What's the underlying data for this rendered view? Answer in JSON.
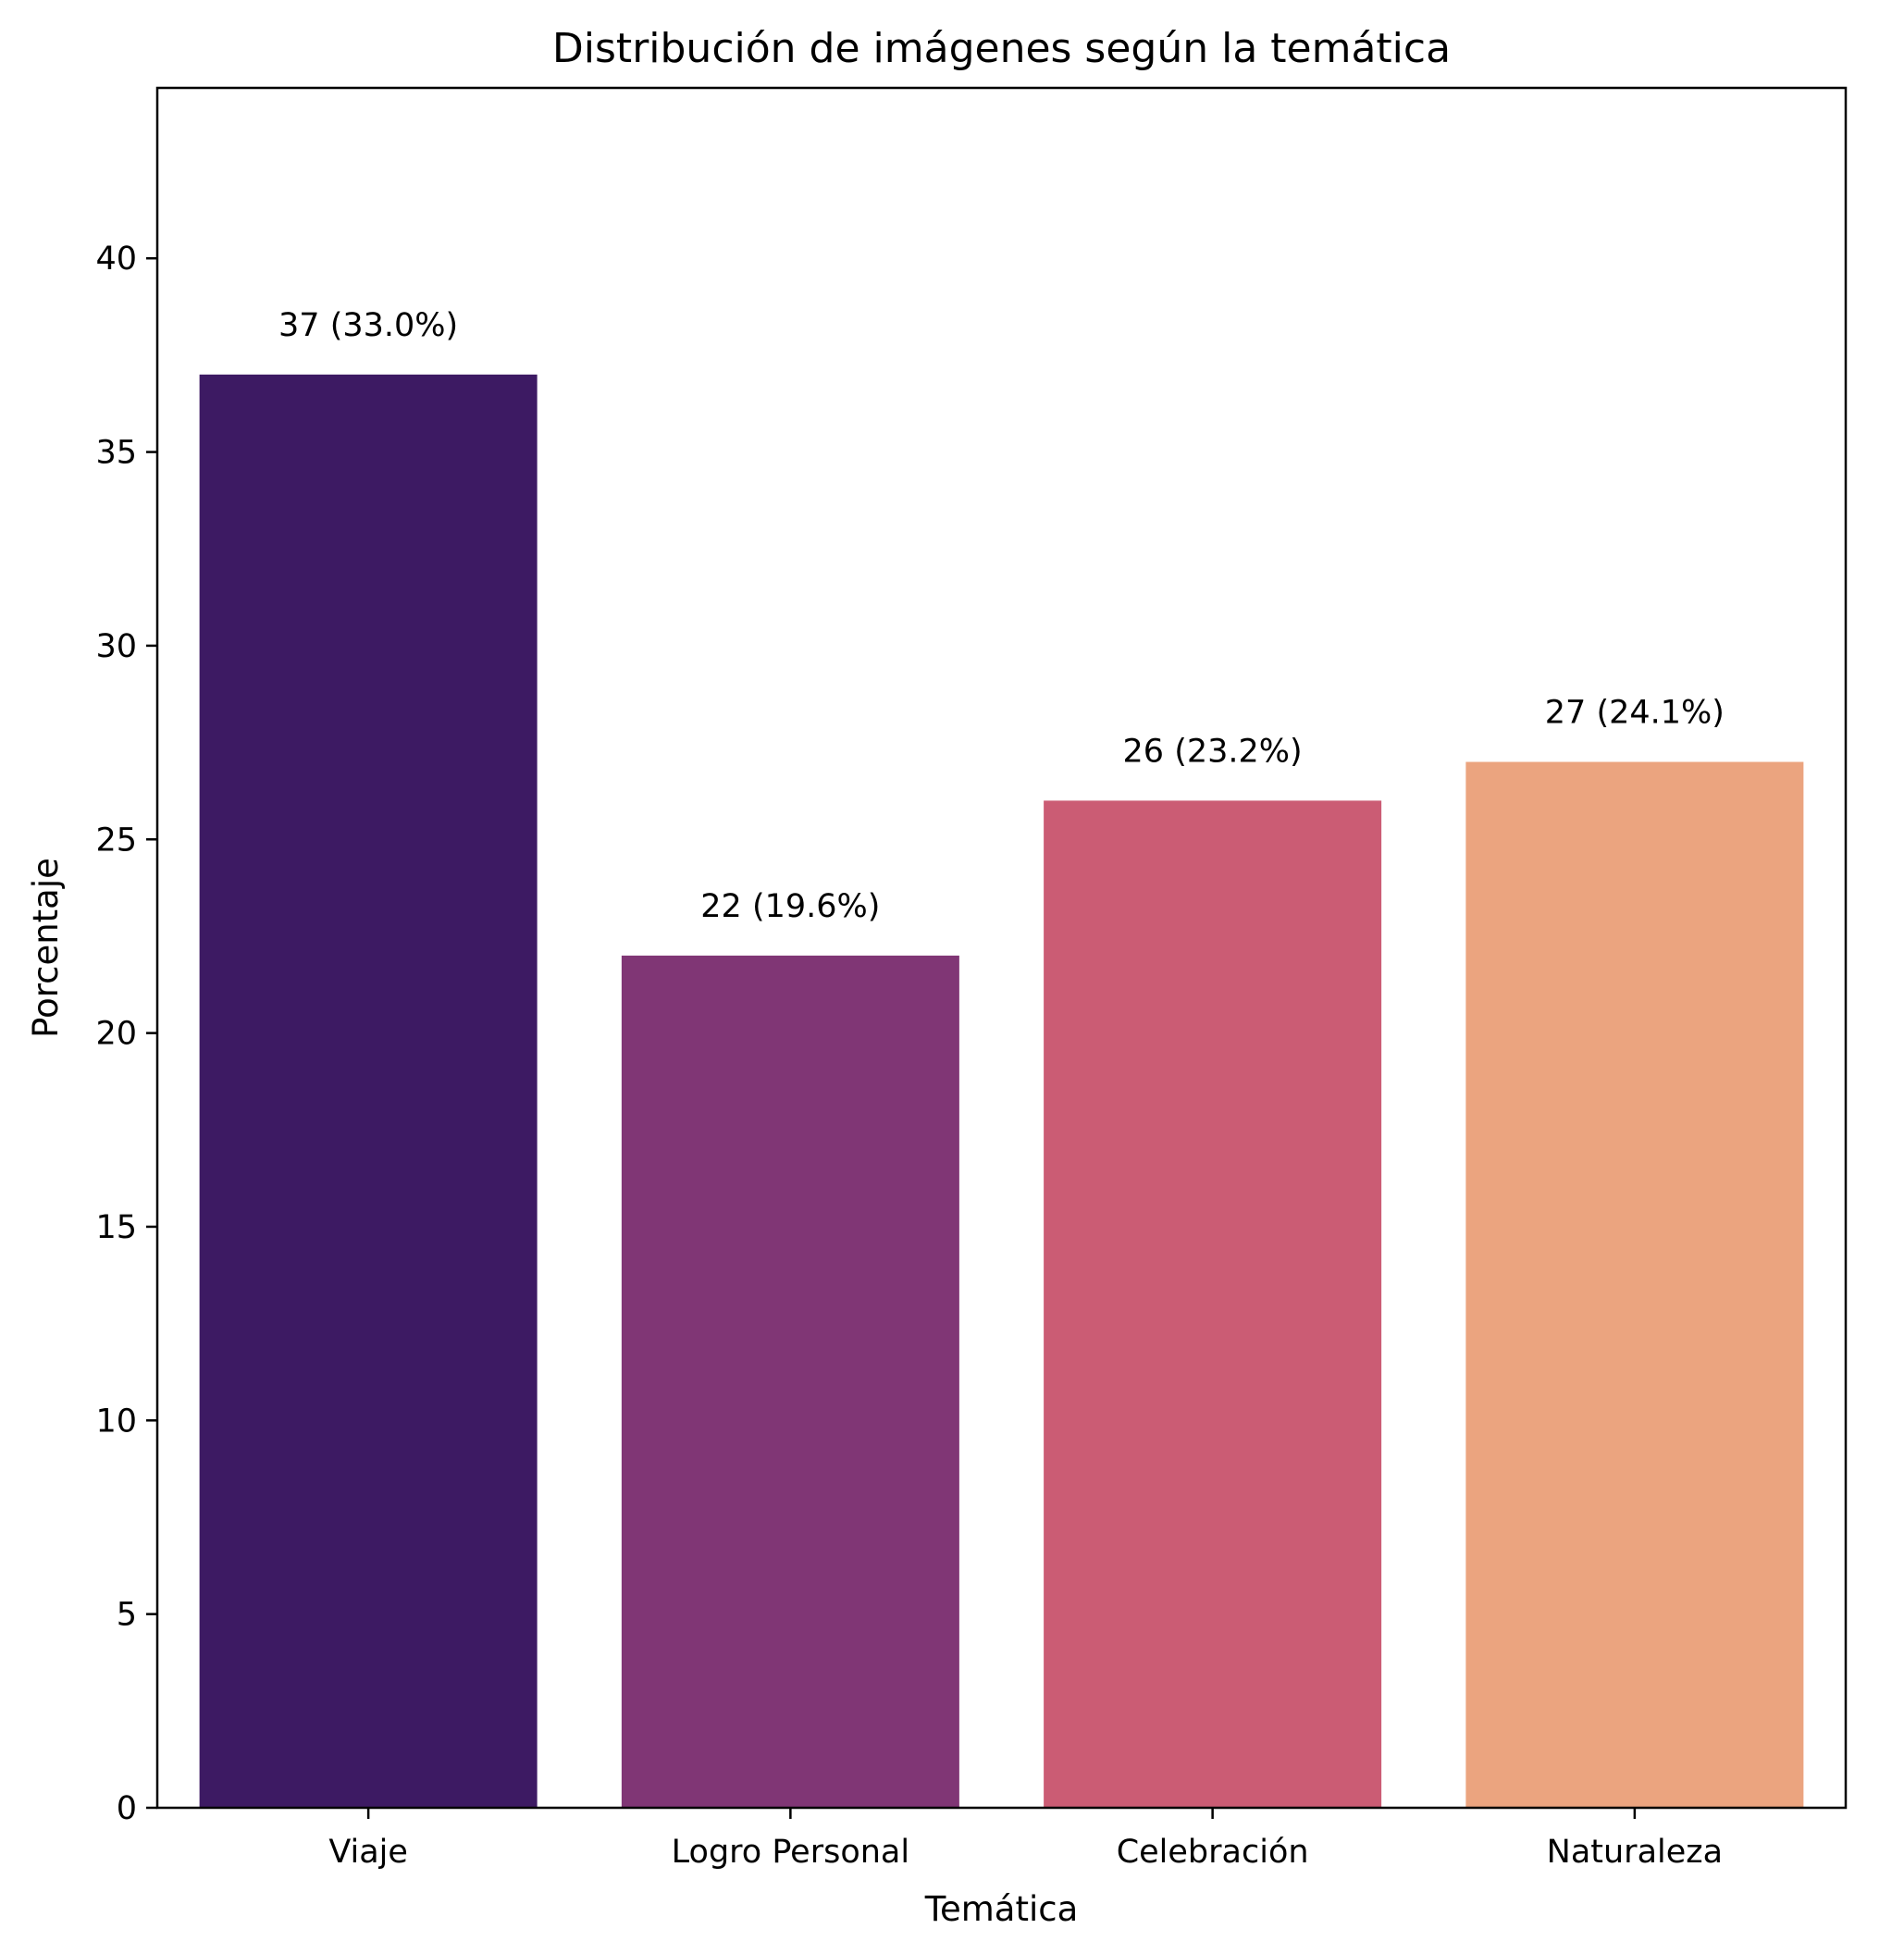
{
  "chart_data": {
    "type": "bar",
    "title": "Distribución de imágenes según la temática",
    "xlabel": "Temática",
    "ylabel": "Porcentaje",
    "categories": [
      "Viaje",
      "Logro Personal",
      "Celebración",
      "Naturaleza"
    ],
    "values": [
      37,
      22,
      26,
      27
    ],
    "data_labels": [
      "37 (33.0%)",
      "22 (19.6%)",
      "26 (23.2%)",
      "27 (24.1%)"
    ],
    "colors": [
      "#3d1a63",
      "#803675",
      "#cb5c74",
      "#eba47f"
    ],
    "ylim": [
      0,
      44.4
    ],
    "yticks": [
      0,
      5,
      10,
      15,
      20,
      25,
      30,
      35,
      40
    ],
    "grid": false,
    "legend": "none"
  }
}
